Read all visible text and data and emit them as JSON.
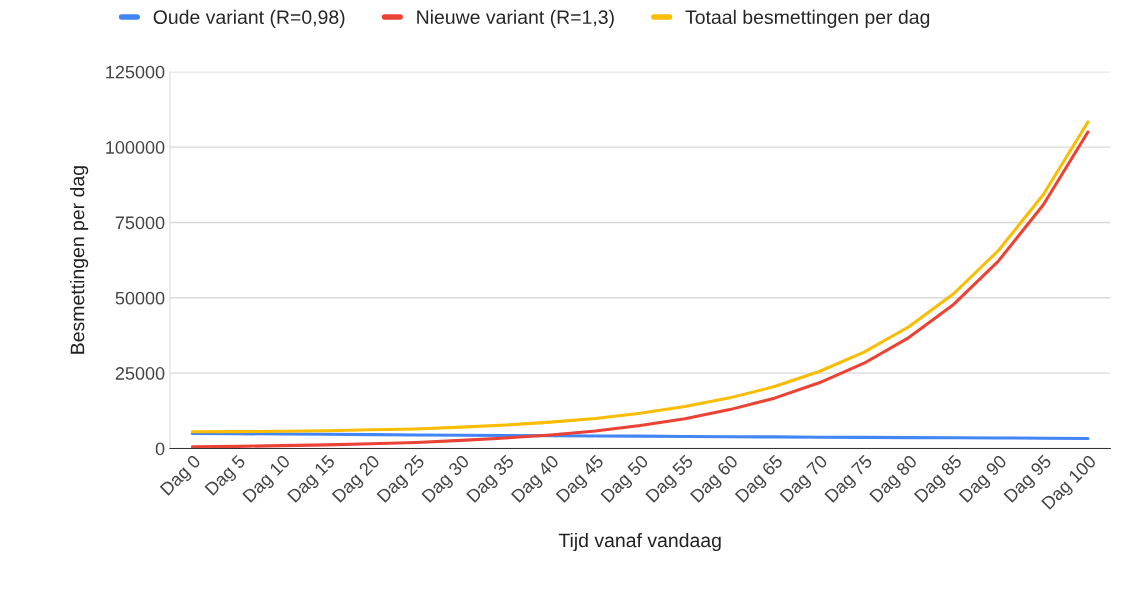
{
  "chart_data": {
    "type": "line",
    "xlabel": "Tijd vanaf vandaag",
    "ylabel": "Besmettingen per dag",
    "categories": [
      "Dag 0",
      "Dag 5",
      "Dag 10",
      "Dag 15",
      "Dag 20",
      "Dag 25",
      "Dag 30",
      "Dag 35",
      "Dag 40",
      "Dag 45",
      "Dag 50",
      "Dag 55",
      "Dag 60",
      "Dag 65",
      "Dag 70",
      "Dag 75",
      "Dag 80",
      "Dag 85",
      "Dag 90",
      "Dag 95",
      "Dag 100"
    ],
    "series": [
      {
        "name": "Oude variant (R=0,98)",
        "color": "#4285f4",
        "values": [
          5000,
          4900,
          4800,
          4700,
          4600,
          4500,
          4400,
          4300,
          4250,
          4150,
          4100,
          4000,
          3900,
          3850,
          3750,
          3700,
          3600,
          3550,
          3500,
          3400,
          3350
        ]
      },
      {
        "name": "Nieuwe variant (R=1,3)",
        "color": "#ea4335",
        "values": [
          550,
          700,
          950,
          1200,
          1600,
          2000,
          2700,
          3500,
          4500,
          5800,
          7600,
          9900,
          12900,
          16700,
          21800,
          28300,
          36800,
          47800,
          62200,
          80800,
          105000
        ]
      },
      {
        "name": "Totaal besmettingen per dag",
        "color": "#fbbc04",
        "values": [
          5550,
          5600,
          5750,
          5900,
          6200,
          6500,
          7100,
          7800,
          8750,
          9950,
          11700,
          13900,
          16800,
          20550,
          25550,
          32000,
          40400,
          51350,
          65700,
          84200,
          108350
        ]
      }
    ],
    "ylim": [
      0,
      125000
    ],
    "yticks": [
      0,
      25000,
      50000,
      75000,
      100000,
      125000
    ],
    "grid": "y",
    "legend": "top left",
    "marker": "none",
    "line_style": "solid"
  }
}
